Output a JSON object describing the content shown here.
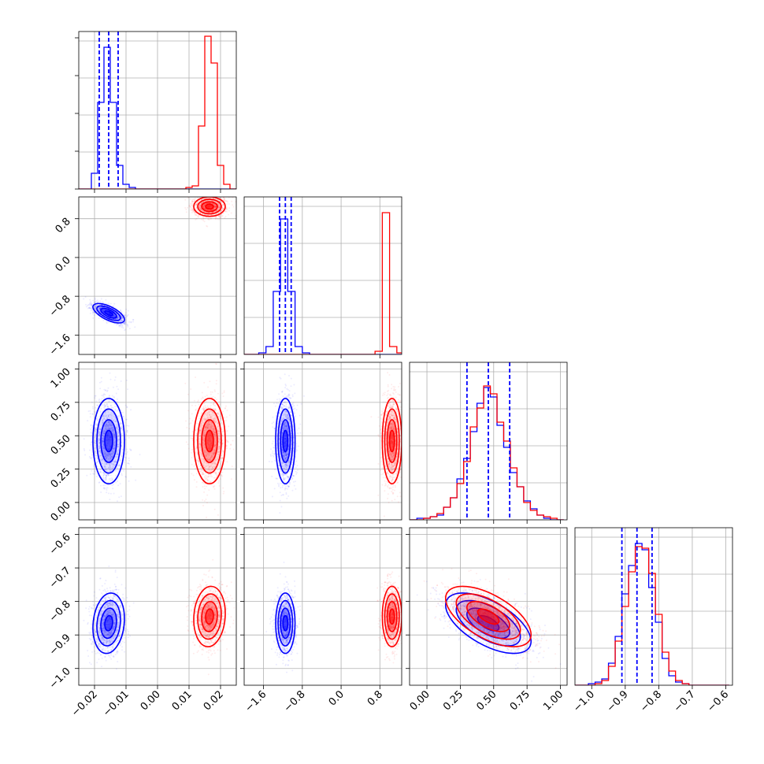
{
  "chart_data": {
    "type": "scatter",
    "subtype": "corner-plot",
    "n_params": 4,
    "grid": true,
    "legend": "none",
    "colors": {
      "blue": "#0000ff",
      "red": "#ff0000"
    },
    "params": [
      {
        "range": [
          -0.025,
          0.025
        ],
        "ticks": [
          -0.02,
          -0.01,
          0.0,
          0.01,
          0.02
        ],
        "tick_labels": [
          "−0.02",
          "−0.01",
          "0.00",
          "0.01",
          "0.02"
        ]
      },
      {
        "range": [
          -2.0,
          1.25
        ],
        "ticks": [
          -1.6,
          -0.8,
          0.0,
          0.8
        ],
        "tick_labels": [
          "−1.6",
          "−0.8",
          "0.0",
          "0.8"
        ]
      },
      {
        "range": [
          -0.13,
          1.05
        ],
        "ticks": [
          0.0,
          0.25,
          0.5,
          0.75,
          1.0
        ],
        "tick_labels": [
          "0.00",
          "0.25",
          "0.50",
          "0.75",
          "1.00"
        ]
      },
      {
        "range": [
          -1.05,
          -0.58
        ],
        "ticks": [
          -1.0,
          -0.9,
          -0.8,
          -0.7,
          -0.6
        ],
        "tick_labels": [
          "−1.0",
          "−0.9",
          "−0.8",
          "−0.7",
          "−0.6"
        ]
      }
    ],
    "series": [
      {
        "color": "#0000ff",
        "mean": [
          -0.0155,
          -1.15,
          0.46,
          -0.865
        ],
        "sd": [
          0.0025,
          0.1,
          0.16,
          0.045
        ],
        "corr": [
          [
            0,
            1,
            -0.65
          ],
          [
            2,
            3,
            -0.6
          ],
          [
            0,
            3,
            0.15
          ]
        ],
        "quantiles": [
          [
            -0.0185,
            -0.0155,
            -0.0125
          ],
          [
            -1.27,
            -1.15,
            -1.03
          ],
          [
            0.3,
            0.46,
            0.62
          ],
          [
            -0.91,
            -0.865,
            -0.82
          ]
        ]
      },
      {
        "color": "#ff0000",
        "mean": [
          0.0165,
          1.05,
          0.46,
          -0.845
        ],
        "sd": [
          0.0025,
          0.1,
          0.16,
          0.045
        ],
        "corr": [
          [
            0,
            1,
            0.0
          ],
          [
            2,
            3,
            -0.6
          ],
          [
            0,
            3,
            0.1
          ]
        ]
      }
    ],
    "diag_hist": [
      {
        "bins": [
          -0.025,
          -0.023,
          -0.021,
          -0.019,
          -0.017,
          -0.015,
          -0.013,
          -0.011,
          -0.009,
          -0.007,
          -0.005,
          -0.003,
          -0.001,
          0.001,
          0.003,
          0.005,
          0.007,
          0.009,
          0.011,
          0.013,
          0.015,
          0.017,
          0.019,
          0.021,
          0.023,
          0.025
        ],
        "counts": [
          [
            0,
            0,
            0.1,
            0.55,
            0.9,
            0.55,
            0.15,
            0.03,
            0.01,
            0,
            0,
            0,
            0,
            0,
            0,
            0,
            0,
            0,
            0,
            0,
            0,
            0,
            0,
            0,
            0
          ],
          [
            0,
            0,
            0,
            0,
            0,
            0,
            0,
            0,
            0,
            0,
            0,
            0,
            0,
            0,
            0,
            0,
            0,
            0.01,
            0.02,
            0.4,
            0.97,
            0.8,
            0.15,
            0.03,
            0
          ]
        ]
      },
      {
        "bins": [
          -2.0,
          -1.85,
          -1.7,
          -1.55,
          -1.4,
          -1.25,
          -1.1,
          -0.95,
          -0.8,
          -0.65,
          -0.5,
          -0.35,
          -0.2,
          -0.05,
          0.1,
          0.25,
          0.4,
          0.55,
          0.7,
          0.85,
          1.0,
          1.15,
          1.3
        ],
        "counts": [
          [
            0,
            0,
            0.01,
            0.05,
            0.4,
            0.86,
            0.4,
            0.05,
            0.01,
            0,
            0,
            0,
            0,
            0,
            0,
            0,
            0,
            0,
            0,
            0,
            0,
            0
          ],
          [
            0,
            0,
            0,
            0,
            0,
            0,
            0,
            0,
            0,
            0,
            0,
            0,
            0,
            0,
            0,
            0,
            0,
            0,
            0.02,
            0.9,
            0.05,
            0.01
          ]
        ]
      },
      {
        "bins": [
          -0.125,
          -0.075,
          -0.025,
          0.025,
          0.075,
          0.125,
          0.175,
          0.225,
          0.275,
          0.325,
          0.375,
          0.425,
          0.475,
          0.525,
          0.575,
          0.625,
          0.675,
          0.725,
          0.775,
          0.825,
          0.875,
          0.925,
          0.975,
          1.025
        ],
        "counts": [
          [
            0,
            0.01,
            0.01,
            0.02,
            0.03,
            0.08,
            0.14,
            0.26,
            0.39,
            0.56,
            0.74,
            0.84,
            0.78,
            0.6,
            0.46,
            0.3,
            0.21,
            0.12,
            0.07,
            0.03,
            0.01,
            0,
            0
          ],
          [
            0,
            0,
            0.01,
            0.02,
            0.04,
            0.08,
            0.14,
            0.23,
            0.37,
            0.59,
            0.71,
            0.85,
            0.8,
            0.62,
            0.5,
            0.33,
            0.21,
            0.11,
            0.06,
            0.03,
            0.02,
            0.01,
            0
          ]
        ]
      },
      {
        "bins": [
          -1.05,
          -1.03,
          -1.01,
          -0.99,
          -0.97,
          -0.95,
          -0.93,
          -0.91,
          -0.89,
          -0.87,
          -0.85,
          -0.83,
          -0.81,
          -0.79,
          -0.77,
          -0.75,
          -0.73,
          -0.71,
          -0.69,
          -0.67,
          -0.65,
          -0.63,
          -0.61,
          -0.59
        ],
        "counts": [
          [
            0,
            0,
            0.01,
            0.02,
            0.04,
            0.14,
            0.31,
            0.58,
            0.76,
            0.9,
            0.86,
            0.62,
            0.4,
            0.17,
            0.06,
            0.02,
            0.01,
            0,
            0,
            0,
            0,
            0,
            0
          ],
          [
            0,
            0,
            0,
            0.01,
            0.03,
            0.12,
            0.28,
            0.5,
            0.72,
            0.88,
            0.87,
            0.71,
            0.45,
            0.21,
            0.09,
            0.03,
            0.01,
            0,
            0,
            0,
            0,
            0,
            0
          ]
        ]
      }
    ]
  }
}
